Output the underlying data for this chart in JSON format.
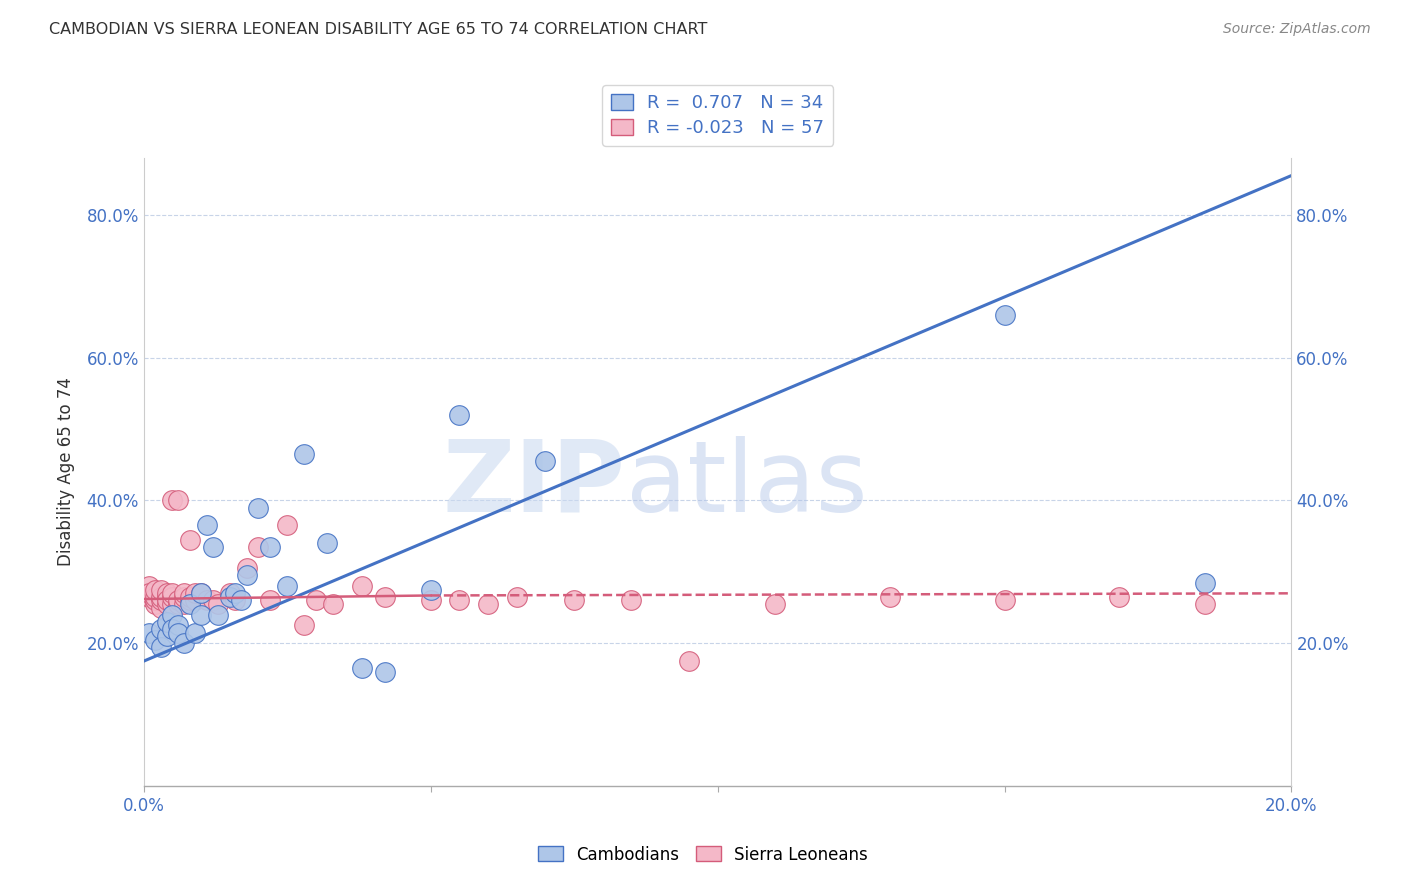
{
  "title": "CAMBODIAN VS SIERRA LEONEAN DISABILITY AGE 65 TO 74 CORRELATION CHART",
  "source": "Source: ZipAtlas.com",
  "ylabel": "Disability Age 65 to 74",
  "xlim": [
    0.0,
    0.2
  ],
  "ylim": [
    0.0,
    0.88
  ],
  "xtick_positions": [
    0.0,
    0.05,
    0.1,
    0.15,
    0.2
  ],
  "xtick_labels": [
    "0.0%",
    "",
    "",
    "",
    "20.0%"
  ],
  "ytick_positions": [
    0.2,
    0.4,
    0.6,
    0.8
  ],
  "ytick_labels": [
    "20.0%",
    "40.0%",
    "60.0%",
    "80.0%"
  ],
  "cambodian_color": "#AEC6E8",
  "cambodian_edge_color": "#4472C4",
  "sierra_leonean_color": "#F4B8C8",
  "sierra_leonean_edge_color": "#D45C7A",
  "cambodian_line_color": "#4472C4",
  "sierra_leonean_line_color": "#D45C7A",
  "legend_R_cambodian": "0.707",
  "legend_N_cambodian": "34",
  "legend_R_sierra": "-0.023",
  "legend_N_sierra": "57",
  "watermark_zip": "ZIP",
  "watermark_atlas": "atlas",
  "cambodian_points_x": [
    0.001,
    0.002,
    0.003,
    0.003,
    0.004,
    0.004,
    0.005,
    0.005,
    0.006,
    0.006,
    0.007,
    0.008,
    0.009,
    0.01,
    0.01,
    0.011,
    0.012,
    0.013,
    0.015,
    0.016,
    0.017,
    0.018,
    0.02,
    0.022,
    0.025,
    0.028,
    0.032,
    0.038,
    0.042,
    0.05,
    0.055,
    0.07,
    0.15,
    0.185
  ],
  "cambodian_points_y": [
    0.215,
    0.205,
    0.22,
    0.195,
    0.21,
    0.23,
    0.24,
    0.22,
    0.225,
    0.215,
    0.2,
    0.255,
    0.215,
    0.27,
    0.24,
    0.365,
    0.335,
    0.24,
    0.265,
    0.27,
    0.26,
    0.295,
    0.39,
    0.335,
    0.28,
    0.465,
    0.34,
    0.165,
    0.16,
    0.275,
    0.52,
    0.455,
    0.66,
    0.285
  ],
  "sierra_leonean_points_x": [
    0.001,
    0.001,
    0.001,
    0.002,
    0.002,
    0.002,
    0.002,
    0.003,
    0.003,
    0.003,
    0.003,
    0.004,
    0.004,
    0.004,
    0.004,
    0.005,
    0.005,
    0.005,
    0.005,
    0.006,
    0.006,
    0.006,
    0.007,
    0.007,
    0.007,
    0.008,
    0.008,
    0.008,
    0.009,
    0.009,
    0.01,
    0.011,
    0.012,
    0.013,
    0.015,
    0.016,
    0.018,
    0.02,
    0.022,
    0.025,
    0.028,
    0.03,
    0.033,
    0.038,
    0.042,
    0.05,
    0.055,
    0.06,
    0.065,
    0.075,
    0.085,
    0.095,
    0.11,
    0.13,
    0.15,
    0.17,
    0.185
  ],
  "sierra_leonean_points_y": [
    0.265,
    0.28,
    0.27,
    0.255,
    0.26,
    0.265,
    0.275,
    0.25,
    0.26,
    0.265,
    0.275,
    0.255,
    0.265,
    0.27,
    0.26,
    0.255,
    0.265,
    0.27,
    0.4,
    0.255,
    0.26,
    0.4,
    0.255,
    0.265,
    0.27,
    0.26,
    0.345,
    0.265,
    0.26,
    0.27,
    0.27,
    0.26,
    0.26,
    0.255,
    0.27,
    0.26,
    0.305,
    0.335,
    0.26,
    0.365,
    0.225,
    0.26,
    0.255,
    0.28,
    0.265,
    0.26,
    0.26,
    0.255,
    0.265,
    0.26,
    0.26,
    0.175,
    0.255,
    0.265,
    0.26,
    0.265,
    0.255
  ],
  "blue_line_x0": 0.0,
  "blue_line_y0": 0.175,
  "blue_line_x1": 0.2,
  "blue_line_y1": 0.855,
  "pink_line_solid_x0": 0.0,
  "pink_line_solid_y0": 0.262,
  "pink_line_solid_x1": 0.05,
  "pink_line_solid_y1": 0.267,
  "pink_line_dash_x0": 0.05,
  "pink_line_dash_y0": 0.267,
  "pink_line_dash_x1": 0.2,
  "pink_line_dash_y1": 0.27
}
